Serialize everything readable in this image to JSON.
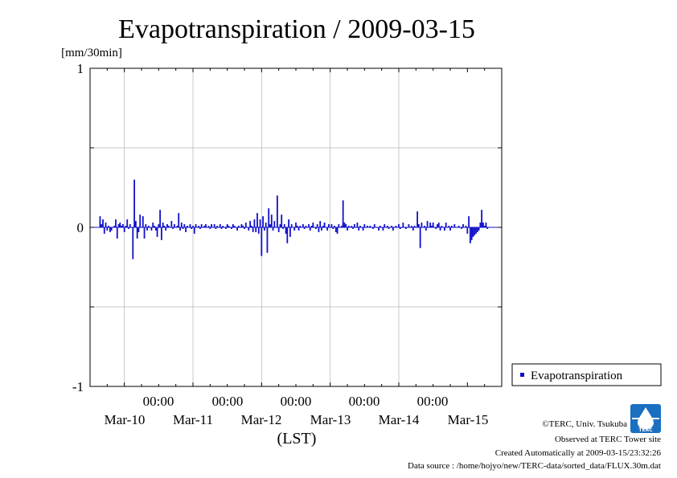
{
  "chart_data": {
    "type": "bar",
    "title": "Evapotranspiration / 2009-03-15",
    "ylabel": "[mm/30min]",
    "xlabel": "(LST)",
    "ylim": [
      -1,
      1
    ],
    "y_ticks": [
      "1",
      "0",
      "-1"
    ],
    "x_tick_times": [
      "00:00",
      "00:00",
      "00:00",
      "00:00",
      "00:00"
    ],
    "x_day_labels": [
      "Mar-10",
      "Mar-11",
      "Mar-12",
      "Mar-13",
      "Mar-14",
      "Mar-15"
    ],
    "grid": true,
    "legend_position": "bottom-right",
    "series": [
      {
        "name": "Evapotranspiration",
        "color": "#1010c8",
        "x_start": "2009-03-09 15:30",
        "x_interval_minutes": 30,
        "values": [
          0.07,
          0.02,
          0.05,
          -0.04,
          0.03,
          -0.02,
          0.01,
          -0.03,
          -0.02,
          0.0,
          0.01,
          0.05,
          -0.07,
          0.02,
          0.03,
          0.01,
          0.02,
          -0.03,
          0.01,
          0.05,
          -0.01,
          0.02,
          0.0,
          -0.2,
          0.3,
          0.04,
          -0.07,
          -0.03,
          0.08,
          0.0,
          0.07,
          -0.07,
          0.02,
          -0.02,
          0.01,
          0.0,
          -0.02,
          0.03,
          0.01,
          -0.02,
          -0.06,
          0.02,
          0.11,
          -0.08,
          0.03,
          0.01,
          -0.02,
          0.02,
          0.01,
          0.0,
          0.04,
          -0.01,
          0.02,
          0.0,
          0.01,
          0.09,
          -0.02,
          0.03,
          -0.01,
          0.02,
          -0.03,
          0.01,
          0.0,
          0.02,
          -0.01,
          0.01,
          -0.04,
          0.02,
          0.0,
          0.01,
          -0.01,
          0.02,
          0.0,
          0.01,
          0.02,
          0.0,
          0.01,
          -0.01,
          0.02,
          0.0,
          0.02,
          -0.01,
          0.01,
          0.0,
          0.02,
          -0.01,
          0.01,
          0.0,
          -0.01,
          0.02,
          0.01,
          0.0,
          -0.01,
          0.02,
          0.01,
          0.0,
          -0.02,
          0.01,
          0.0,
          0.02,
          0.01,
          -0.01,
          0.03,
          0.0,
          -0.02,
          0.04,
          0.01,
          -0.03,
          0.05,
          -0.03,
          0.09,
          -0.04,
          0.05,
          -0.18,
          0.07,
          -0.02,
          0.03,
          -0.16,
          0.12,
          0.02,
          0.08,
          -0.02,
          0.04,
          0.0,
          0.2,
          -0.03,
          0.02,
          0.08,
          -0.01,
          0.02,
          -0.04,
          -0.1,
          0.05,
          -0.06,
          0.02,
          0.0,
          -0.02,
          0.03,
          0.01,
          -0.02,
          0.01,
          0.0,
          0.02,
          -0.01,
          0.01,
          0.0,
          0.02,
          -0.02,
          0.01,
          0.03,
          0.0,
          -0.01,
          0.02,
          -0.03,
          0.04,
          -0.02,
          0.01,
          0.03,
          0.0,
          -0.02,
          0.02,
          0.0,
          0.02,
          -0.01,
          0.01,
          -0.03,
          -0.04,
          0.02,
          0.0,
          0.01,
          0.17,
          0.03,
          0.02,
          -0.02,
          0.01,
          0.0,
          0.01,
          -0.01,
          0.02,
          0.0,
          0.03,
          -0.02,
          0.01,
          0.0,
          -0.02,
          0.02,
          0.0,
          0.01,
          0.0,
          0.01,
          0.0,
          -0.01,
          0.02,
          0.0,
          0.0,
          -0.02,
          0.01,
          0.0,
          -0.02,
          0.02,
          0.0,
          0.01,
          -0.01,
          0.0,
          0.01,
          -0.02,
          0.0,
          0.01,
          0.0,
          0.02,
          -0.01,
          0.0,
          0.03,
          0.0,
          -0.01,
          0.0,
          0.02,
          0.0,
          0.01,
          -0.02,
          0.01,
          0.0,
          0.1,
          0.02,
          -0.13,
          0.03,
          0.0,
          0.01,
          -0.02,
          0.04,
          0.0,
          0.03,
          0.01,
          0.03,
          0.0,
          -0.01,
          0.02,
          0.03,
          -0.02,
          0.01,
          0.0,
          -0.02,
          0.03,
          0.0,
          0.01,
          -0.02,
          0.01,
          0.0,
          0.02,
          0.0,
          0.0,
          0.01,
          0.0,
          -0.01,
          0.02,
          0.0,
          0.01,
          -0.04,
          0.07,
          -0.1,
          -0.08,
          -0.06,
          -0.05,
          -0.04,
          -0.03,
          -0.02,
          0.03,
          0.11,
          0.03,
          0.01,
          0.03,
          -0.01
        ]
      }
    ]
  },
  "credits": {
    "copyright": "©TERC, Univ. Tsukuba",
    "observed": "Observed at TERC Tower site",
    "created": "Created Automatically at 2009-03-15/23:32:26",
    "source": "Data source : /home/hojyo/new/TERC-data/sorted_data/FLUX.30m.dat",
    "logo_text": "TERC"
  }
}
